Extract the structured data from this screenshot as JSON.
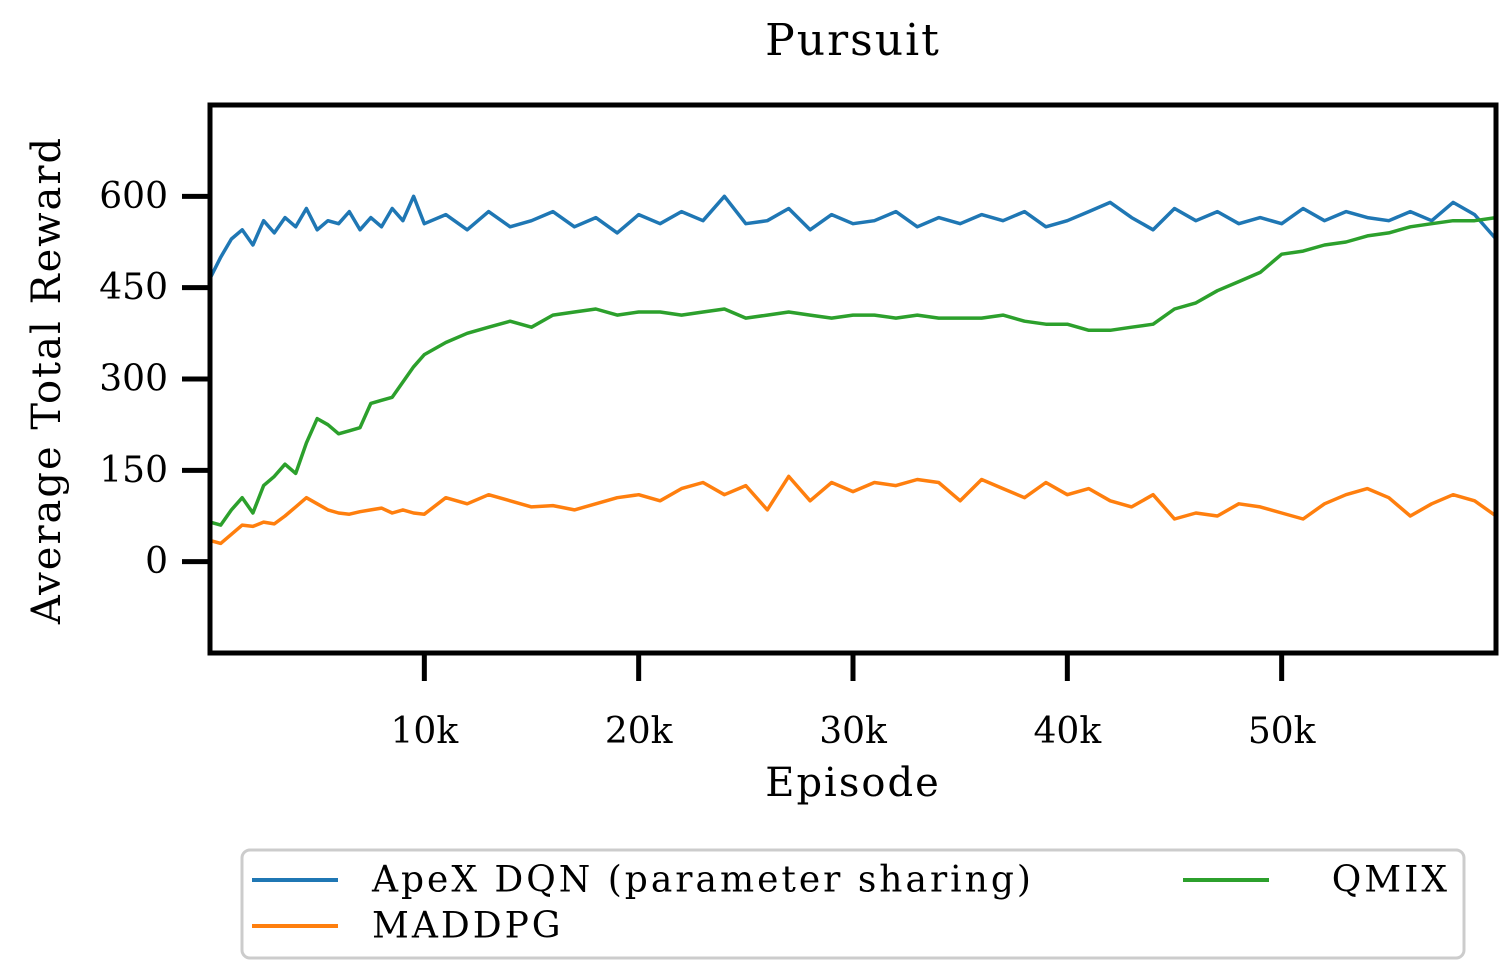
{
  "chart_data": {
    "type": "line",
    "title": "Pursuit",
    "xlabel": "Episode",
    "ylabel": "Average Total Reward",
    "xlim": [
      0,
      60000
    ],
    "ylim": [
      -150,
      750
    ],
    "x_ticks": [
      {
        "value": 10000,
        "label": "10k"
      },
      {
        "value": 20000,
        "label": "20k"
      },
      {
        "value": 30000,
        "label": "30k"
      },
      {
        "value": 40000,
        "label": "40k"
      },
      {
        "value": 50000,
        "label": "50k"
      }
    ],
    "y_ticks": [
      {
        "value": 0,
        "label": "0"
      },
      {
        "value": 150,
        "label": "150"
      },
      {
        "value": 300,
        "label": "300"
      },
      {
        "value": 450,
        "label": "450"
      },
      {
        "value": 600,
        "label": "600"
      }
    ],
    "grid": false,
    "legend_position": "bottom",
    "series": [
      {
        "name": "ApeX DQN (parameter sharing)",
        "color": "#1f77b4",
        "x": [
          0,
          500,
          1000,
          1500,
          2000,
          2500,
          3000,
          3500,
          4000,
          4500,
          5000,
          5500,
          6000,
          6500,
          7000,
          7500,
          8000,
          8500,
          9000,
          9500,
          10000,
          11000,
          12000,
          13000,
          14000,
          15000,
          16000,
          17000,
          18000,
          19000,
          20000,
          21000,
          22000,
          23000,
          24000,
          25000,
          26000,
          27000,
          28000,
          29000,
          30000,
          31000,
          32000,
          33000,
          34000,
          35000,
          36000,
          37000,
          38000,
          39000,
          40000,
          41000,
          42000,
          43000,
          44000,
          45000,
          46000,
          47000,
          48000,
          49000,
          50000,
          51000,
          52000,
          53000,
          54000,
          55000,
          56000,
          57000,
          58000,
          59000,
          60000
        ],
        "y": [
          465,
          500,
          530,
          545,
          520,
          560,
          540,
          565,
          550,
          580,
          545,
          560,
          555,
          575,
          545,
          565,
          550,
          580,
          560,
          600,
          555,
          570,
          545,
          575,
          550,
          560,
          575,
          550,
          565,
          540,
          570,
          555,
          575,
          560,
          600,
          555,
          560,
          580,
          545,
          570,
          555,
          560,
          575,
          550,
          565,
          555,
          570,
          560,
          575,
          550,
          560,
          575,
          590,
          565,
          545,
          580,
          560,
          575,
          555,
          565,
          555,
          580,
          560,
          575,
          565,
          560,
          575,
          560,
          590,
          570,
          530
        ]
      },
      {
        "name": "MADDPG",
        "color": "#ff7f0e",
        "x": [
          0,
          500,
          1000,
          1500,
          2000,
          2500,
          3000,
          3500,
          4000,
          4500,
          5000,
          5500,
          6000,
          6500,
          7000,
          7500,
          8000,
          8500,
          9000,
          9500,
          10000,
          11000,
          12000,
          13000,
          14000,
          15000,
          16000,
          17000,
          18000,
          19000,
          20000,
          21000,
          22000,
          23000,
          24000,
          25000,
          26000,
          27000,
          28000,
          29000,
          30000,
          31000,
          32000,
          33000,
          34000,
          35000,
          36000,
          37000,
          38000,
          39000,
          40000,
          41000,
          42000,
          43000,
          44000,
          45000,
          46000,
          47000,
          48000,
          49000,
          50000,
          51000,
          52000,
          53000,
          54000,
          55000,
          56000,
          57000,
          58000,
          59000,
          60000
        ],
        "y": [
          35,
          30,
          45,
          60,
          58,
          65,
          62,
          75,
          90,
          105,
          95,
          85,
          80,
          78,
          82,
          85,
          88,
          80,
          85,
          80,
          78,
          105,
          95,
          110,
          100,
          90,
          92,
          85,
          95,
          105,
          110,
          100,
          120,
          130,
          110,
          125,
          85,
          140,
          100,
          130,
          115,
          130,
          125,
          135,
          130,
          100,
          135,
          120,
          105,
          130,
          110,
          120,
          100,
          90,
          110,
          70,
          80,
          75,
          95,
          90,
          80,
          70,
          95,
          110,
          120,
          105,
          75,
          95,
          110,
          100,
          75
        ]
      },
      {
        "name": "QMIX",
        "color": "#2ca02c",
        "x": [
          0,
          500,
          1000,
          1500,
          2000,
          2500,
          3000,
          3500,
          4000,
          4500,
          5000,
          5500,
          6000,
          6500,
          7000,
          7500,
          8000,
          8500,
          9000,
          9500,
          10000,
          11000,
          12000,
          13000,
          14000,
          15000,
          16000,
          17000,
          18000,
          19000,
          20000,
          21000,
          22000,
          23000,
          24000,
          25000,
          26000,
          27000,
          28000,
          29000,
          30000,
          31000,
          32000,
          33000,
          34000,
          35000,
          36000,
          37000,
          38000,
          39000,
          40000,
          41000,
          42000,
          43000,
          44000,
          45000,
          46000,
          47000,
          48000,
          49000,
          50000,
          51000,
          52000,
          53000,
          54000,
          55000,
          56000,
          57000,
          58000,
          59000,
          60000
        ],
        "y": [
          65,
          60,
          85,
          105,
          80,
          125,
          140,
          160,
          145,
          195,
          235,
          225,
          210,
          215,
          220,
          260,
          265,
          270,
          295,
          320,
          340,
          360,
          375,
          385,
          395,
          385,
          405,
          410,
          415,
          405,
          410,
          410,
          405,
          410,
          415,
          400,
          405,
          410,
          405,
          400,
          405,
          405,
          400,
          405,
          400,
          400,
          400,
          405,
          395,
          390,
          390,
          380,
          380,
          385,
          390,
          415,
          425,
          445,
          460,
          475,
          505,
          510,
          520,
          525,
          535,
          540,
          550,
          555,
          560,
          560,
          565
        ]
      }
    ]
  }
}
